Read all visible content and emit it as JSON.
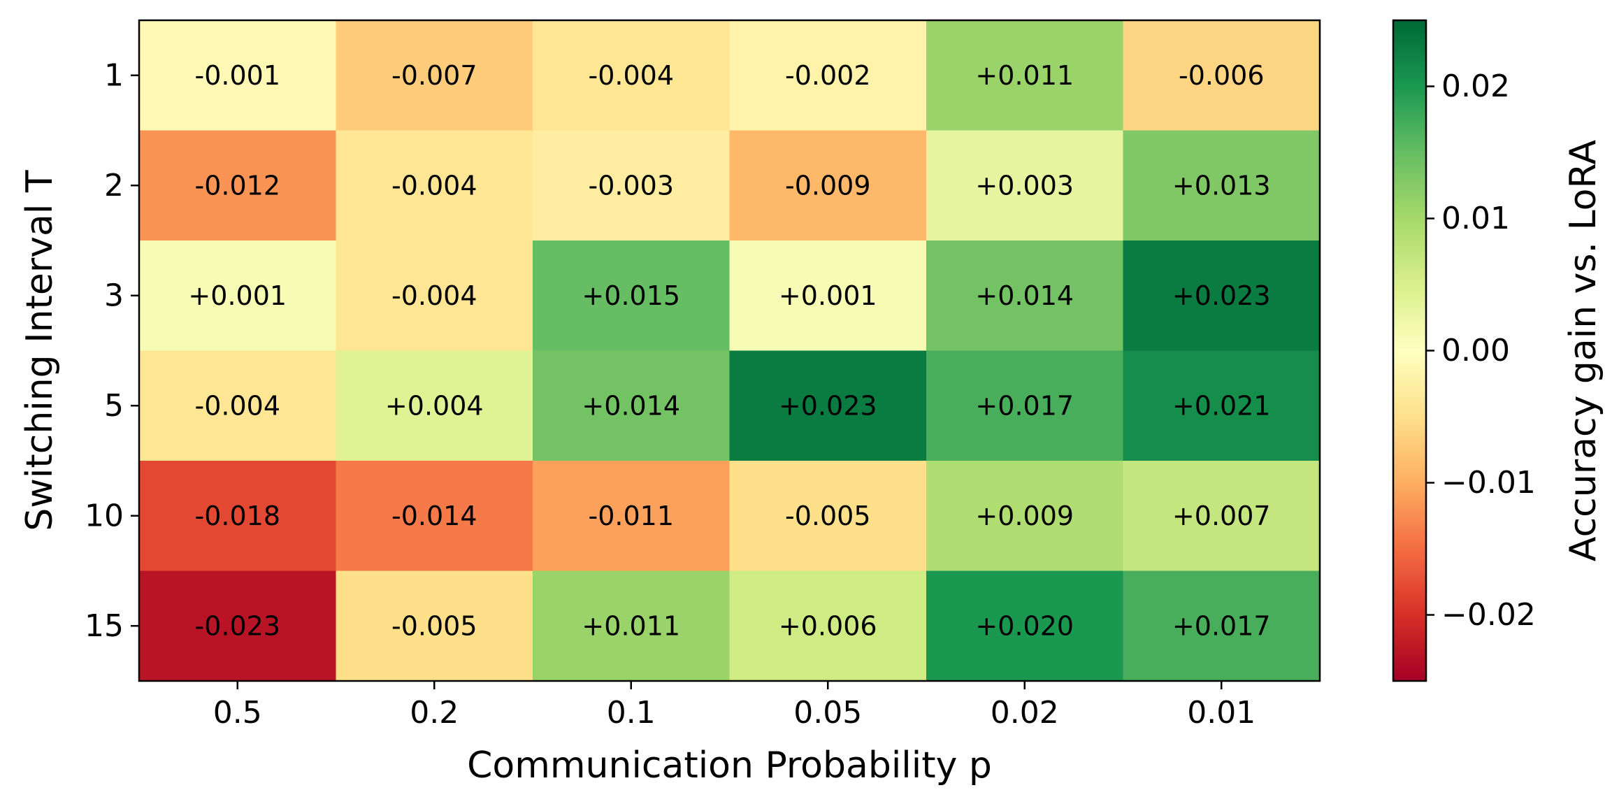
{
  "chart_data": {
    "type": "heatmap",
    "title": "",
    "xlabel": "Communication Probability p",
    "ylabel": "Switching Interval T",
    "x_categories": [
      "0.5",
      "0.2",
      "0.1",
      "0.05",
      "0.02",
      "0.01"
    ],
    "y_categories": [
      "1",
      "2",
      "3",
      "5",
      "10",
      "15"
    ],
    "values": [
      [
        -0.001,
        -0.007,
        -0.004,
        -0.002,
        0.011,
        -0.006
      ],
      [
        -0.012,
        -0.004,
        -0.003,
        -0.009,
        0.003,
        0.013
      ],
      [
        0.001,
        -0.004,
        0.015,
        0.001,
        0.014,
        0.023
      ],
      [
        -0.004,
        0.004,
        0.014,
        0.023,
        0.017,
        0.021
      ],
      [
        -0.018,
        -0.014,
        -0.011,
        -0.005,
        0.009,
        0.007
      ],
      [
        -0.023,
        -0.005,
        0.011,
        0.006,
        0.02,
        0.017
      ]
    ],
    "cell_labels": [
      [
        "-0.001",
        "-0.007",
        "-0.004",
        "-0.002",
        "+0.011",
        "-0.006"
      ],
      [
        "-0.012",
        "-0.004",
        "-0.003",
        "-0.009",
        "+0.003",
        "+0.013"
      ],
      [
        "+0.001",
        "-0.004",
        "+0.015",
        "+0.001",
        "+0.014",
        "+0.023"
      ],
      [
        "-0.004",
        "+0.004",
        "+0.014",
        "+0.023",
        "+0.017",
        "+0.021"
      ],
      [
        "-0.018",
        "-0.014",
        "-0.011",
        "-0.005",
        "+0.009",
        "+0.007"
      ],
      [
        "-0.023",
        "-0.005",
        "+0.011",
        "+0.006",
        "+0.020",
        "+0.017"
      ]
    ],
    "colorbar": {
      "label": "Accuracy gain vs. LoRA",
      "colormap": "RdYlGn",
      "vmin": -0.025,
      "vmax": 0.025,
      "ticks": [
        0.02,
        0.01,
        0.0,
        -0.01,
        -0.02
      ],
      "tick_labels": [
        "0.02",
        "0.01",
        "0.00",
        "−0.01",
        "−0.02"
      ]
    }
  }
}
